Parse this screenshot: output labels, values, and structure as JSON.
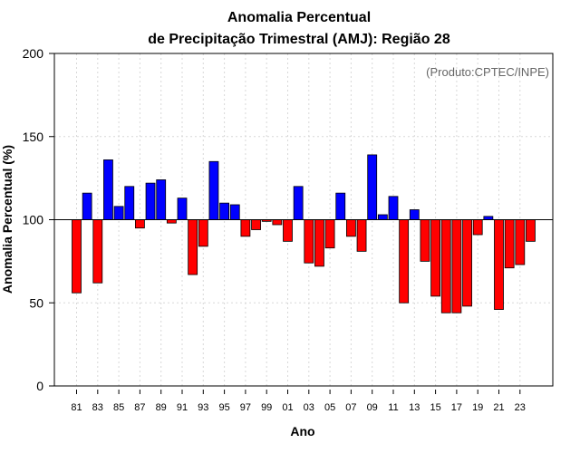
{
  "chart_data": {
    "type": "bar",
    "title_line1": "Anomalia Percentual",
    "title_line2": "de Precipitação Trimestral (AMJ): Região 28",
    "credit": "(Produto:CPTEC/INPE)",
    "xlabel": "Ano",
    "ylabel": "Anomalia Percentual (%)",
    "ylim": [
      0,
      200
    ],
    "yticks": [
      0,
      50,
      100,
      150,
      200
    ],
    "baseline": 100,
    "grid": true,
    "colors": {
      "above": "#0000ff",
      "below": "#ff0000",
      "edge": "#000000",
      "grid": "#d8d8d8"
    },
    "categories": [
      "81",
      "82",
      "83",
      "84",
      "85",
      "86",
      "87",
      "88",
      "89",
      "90",
      "91",
      "92",
      "93",
      "94",
      "95",
      "96",
      "97",
      "98",
      "99",
      "00",
      "01",
      "02",
      "03",
      "04",
      "05",
      "06",
      "07",
      "08",
      "09",
      "10",
      "11",
      "12",
      "13",
      "14",
      "15",
      "16",
      "17",
      "18",
      "19",
      "20",
      "21",
      "22",
      "23",
      "24"
    ],
    "xticklabels": [
      "81",
      "83",
      "85",
      "87",
      "89",
      "91",
      "93",
      "95",
      "97",
      "99",
      "01",
      "03",
      "05",
      "07",
      "09",
      "11",
      "13",
      "15",
      "17",
      "19",
      "21",
      "23"
    ],
    "values": [
      56,
      116,
      62,
      136,
      108,
      120,
      95,
      122,
      124,
      98,
      113,
      67,
      84,
      135,
      110,
      109,
      90,
      94,
      99,
      97,
      87,
      120,
      74,
      72,
      83,
      116,
      90,
      81,
      139,
      103,
      114,
      50,
      106,
      75,
      54,
      44,
      44,
      48,
      91,
      102,
      46,
      71,
      73,
      87
    ]
  }
}
